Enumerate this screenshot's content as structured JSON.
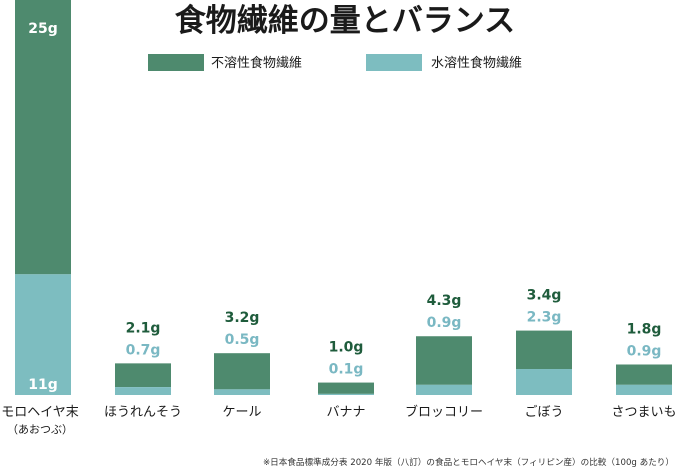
{
  "chart_data": {
    "type": "bar",
    "stacked": true,
    "title": "食物繊維の量とバランス",
    "legend_position": "top",
    "series": [
      {
        "name": "不溶性食物繊維",
        "color": "#4e8a6e",
        "label_color": "#1f5c3c",
        "values": [
          25,
          2.1,
          3.2,
          1.0,
          4.3,
          3.4,
          1.8
        ]
      },
      {
        "name": "水溶性食物繊維",
        "color": "#7dbdc0",
        "label_color": "#7ab8c3",
        "values": [
          11,
          0.7,
          0.5,
          0.1,
          0.9,
          2.3,
          0.9
        ]
      }
    ],
    "categories": [
      {
        "name": "モロヘイヤ末",
        "sub": "（あおつぶ）"
      },
      {
        "name": "ほうれんそう",
        "sub": ""
      },
      {
        "name": "ケール",
        "sub": ""
      },
      {
        "name": "バナナ",
        "sub": ""
      },
      {
        "name": "ブロッコリー",
        "sub": ""
      },
      {
        "name": "ごぼう",
        "sub": ""
      },
      {
        "name": "さつまいも",
        "sub": ""
      }
    ],
    "value_labels": {
      "insoluble": [
        "25g",
        "2.1g",
        "3.2g",
        "1.0g",
        "4.3g",
        "3.4g",
        "1.8g"
      ],
      "soluble": [
        "11g",
        "0.7g",
        "0.5g",
        "0.1g",
        "0.9g",
        "2.3g",
        "0.9g"
      ]
    },
    "footnote": "※日本食品標準成分表 2020 年版（八訂）の食品とモロヘイヤ末（フィリピン産）の比較（100g あたり）",
    "grid": false
  }
}
